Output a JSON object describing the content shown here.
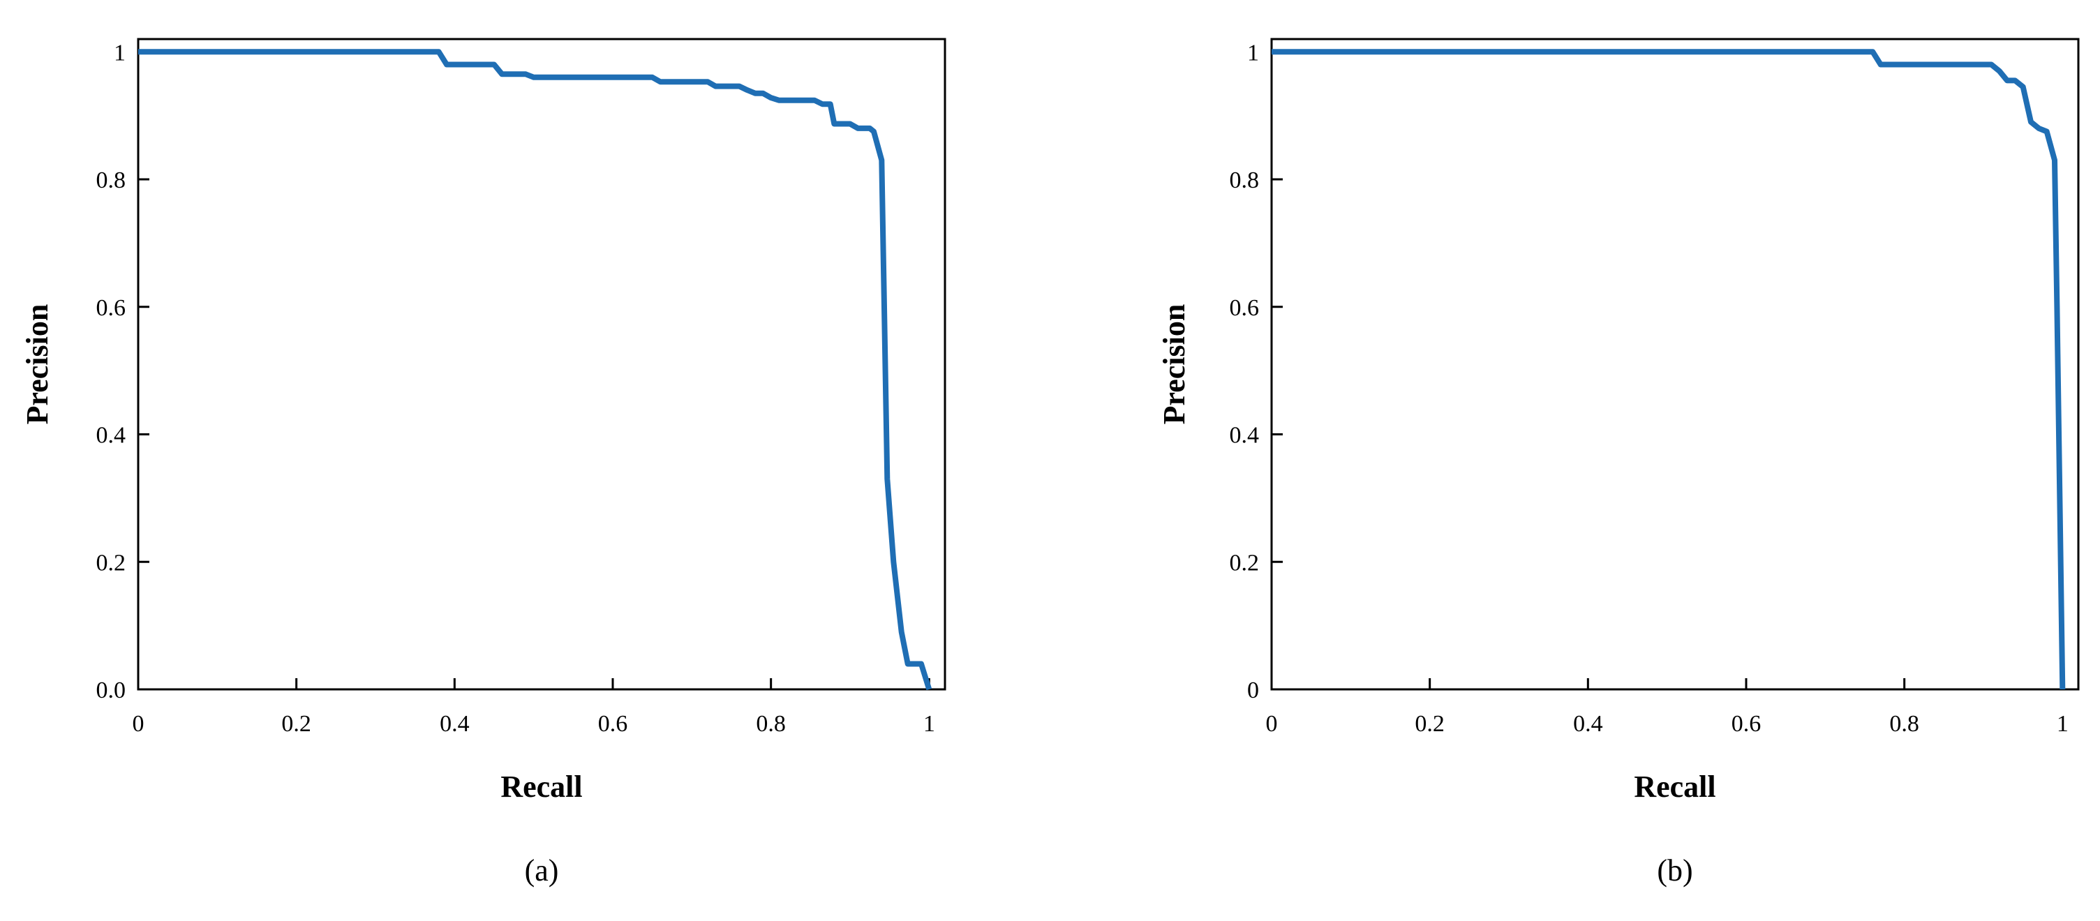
{
  "colors": {
    "line": "#1f6eb4",
    "axes": "#000000",
    "background": "#ffffff"
  },
  "chart_data": [
    {
      "type": "line",
      "panel_label": "(a)",
      "xlabel": "Recall",
      "ylabel": "Precision",
      "xlim": [
        0,
        1.02
      ],
      "ylim": [
        0,
        1.02
      ],
      "grid": false,
      "x_ticks": [
        0,
        0.2,
        0.4,
        0.6,
        0.8,
        1
      ],
      "x_tick_labels": [
        "0",
        "0.2",
        "0.4",
        "0.6",
        "0.8",
        "1"
      ],
      "y_ticks": [
        0,
        0.2,
        0.4,
        0.6,
        0.8,
        1
      ],
      "y_tick_labels": [
        "0.0",
        "0.2",
        "0.4",
        "0.6",
        "0.8",
        "1"
      ],
      "series": [
        {
          "x": [
            0,
            0.38,
            0.39,
            0.45,
            0.46,
            0.49,
            0.5,
            0.65,
            0.66,
            0.72,
            0.73,
            0.76,
            0.77,
            0.78,
            0.79,
            0.8,
            0.81,
            0.855,
            0.865,
            0.875,
            0.88,
            0.9,
            0.91,
            0.925,
            0.93,
            0.94,
            0.947,
            0.955,
            0.965,
            0.973,
            0.99,
            1.0
          ],
          "y": [
            1.0,
            1.0,
            0.98,
            0.98,
            0.965,
            0.965,
            0.96,
            0.96,
            0.953,
            0.953,
            0.946,
            0.946,
            0.94,
            0.935,
            0.935,
            0.928,
            0.924,
            0.924,
            0.918,
            0.918,
            0.887,
            0.887,
            0.88,
            0.88,
            0.875,
            0.83,
            0.33,
            0.2,
            0.09,
            0.04,
            0.04,
            0.0
          ]
        }
      ]
    },
    {
      "type": "line",
      "panel_label": "(b)",
      "xlabel": "Recall",
      "ylabel": "Precision",
      "xlim": [
        0,
        1.02
      ],
      "ylim": [
        0,
        1.02
      ],
      "grid": false,
      "x_ticks": [
        0,
        0.2,
        0.4,
        0.6,
        0.8,
        1
      ],
      "x_tick_labels": [
        "0",
        "0.2",
        "0.4",
        "0.6",
        "0.8",
        "1"
      ],
      "y_ticks": [
        0,
        0.2,
        0.4,
        0.6,
        0.8,
        1
      ],
      "y_tick_labels": [
        "0",
        "0.2",
        "0.4",
        "0.6",
        "0.8",
        "1"
      ],
      "series": [
        {
          "x": [
            0,
            0.76,
            0.77,
            0.91,
            0.92,
            0.93,
            0.94,
            0.95,
            0.96,
            0.97,
            0.98,
            0.99,
            0.993,
            1.0
          ],
          "y": [
            1.0,
            1.0,
            0.98,
            0.98,
            0.97,
            0.955,
            0.955,
            0.945,
            0.89,
            0.88,
            0.875,
            0.83,
            0.6,
            0.0
          ]
        }
      ]
    }
  ]
}
